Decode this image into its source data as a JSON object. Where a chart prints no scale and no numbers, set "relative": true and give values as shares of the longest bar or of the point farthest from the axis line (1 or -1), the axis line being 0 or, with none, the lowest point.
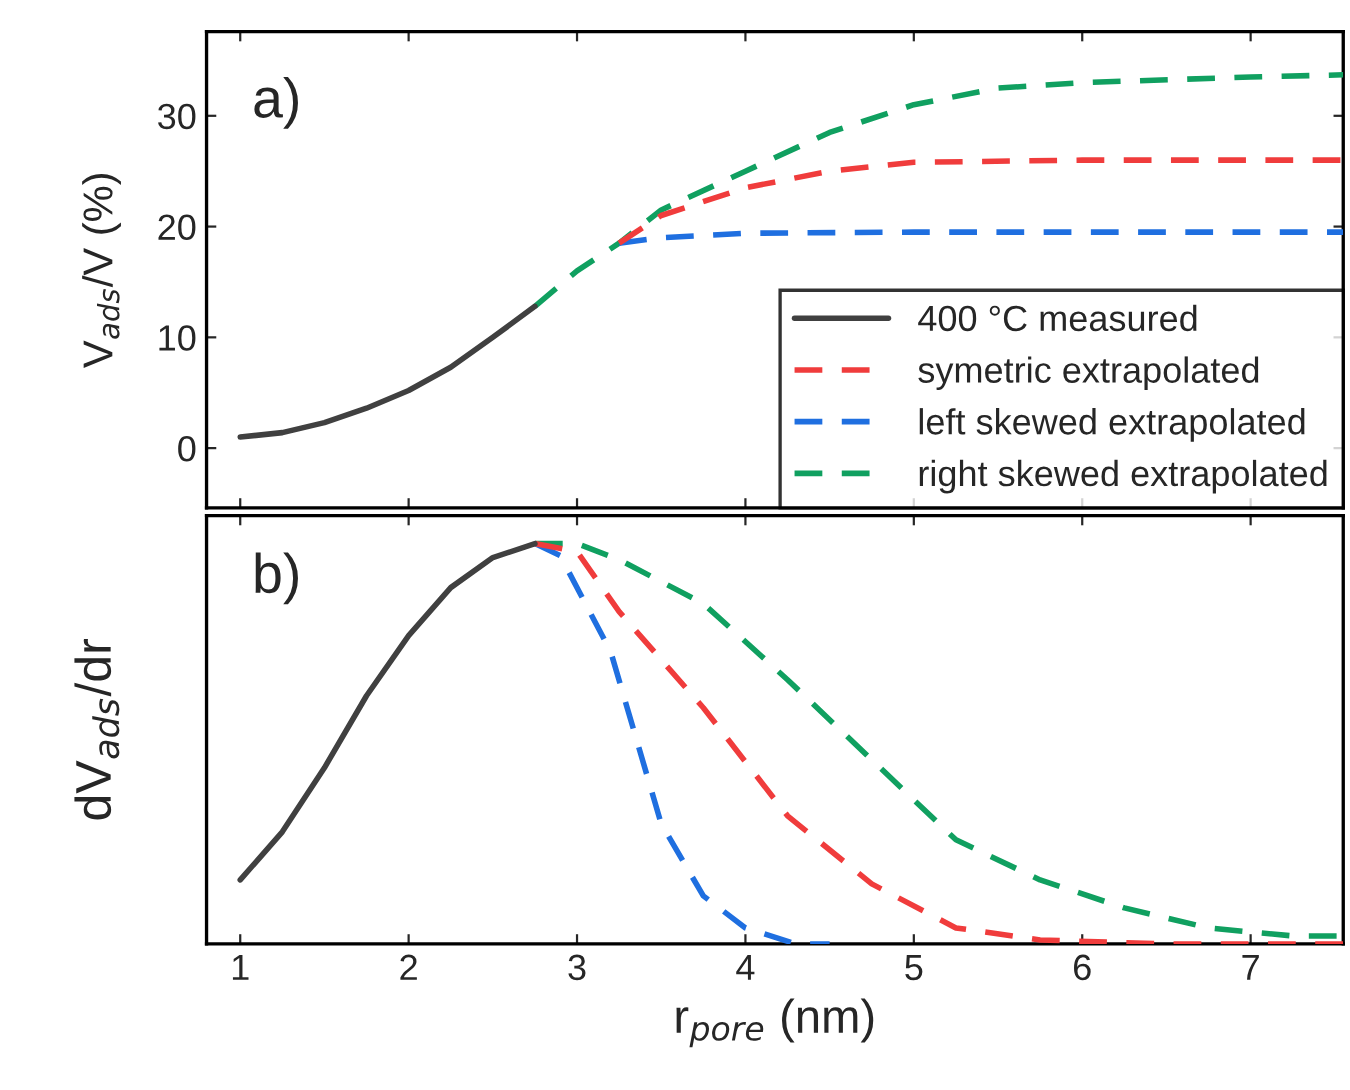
{
  "chart_data": [
    {
      "type": "line",
      "ylabel": "V$_{ads}$/V (%)",
      "annotations": [
        "a)"
      ],
      "xlim": [
        0.8,
        7.55
      ],
      "ylim": [
        -5.4,
        37.6
      ],
      "yticks": [
        0,
        10,
        20,
        30
      ],
      "xticks": [
        1,
        2,
        3,
        4,
        5,
        6,
        7
      ],
      "tick_labels": "y",
      "grid": false,
      "legend": "bottom right",
      "series": [
        {
          "name": "400 °C measured",
          "color": "#404040",
          "line_style": "solid",
          "x": [
            1.0,
            1.25,
            1.5,
            1.75,
            2.0,
            2.25,
            2.5,
            2.75
          ],
          "values": [
            1.0,
            1.4,
            2.3,
            3.6,
            5.2,
            7.3,
            10.0,
            12.8
          ]
        },
        {
          "name": "symetric extrapolated",
          "color": "#f03c3c",
          "line_style": "dashed",
          "x": [
            3.25,
            3.5,
            4.0,
            4.5,
            5.0,
            6.0,
            7.0,
            7.55
          ],
          "values": [
            18.5,
            21.0,
            23.5,
            25.0,
            25.8,
            26.0,
            26.0,
            26.0
          ]
        },
        {
          "name": "left skewed extrapolated",
          "color": "#1f6fe0",
          "line_style": "dashed",
          "x": [
            3.25,
            3.5,
            4.0,
            5.0,
            6.0,
            7.55
          ],
          "values": [
            18.5,
            19.0,
            19.4,
            19.5,
            19.5,
            19.5
          ]
        },
        {
          "name": "right skewed extrapolated",
          "color": "#10a060",
          "line_style": "dashed",
          "x": [
            2.75,
            3.0,
            3.25,
            3.5,
            4.0,
            4.5,
            5.0,
            5.5,
            6.0,
            7.0,
            7.55
          ],
          "values": [
            12.8,
            16.0,
            18.5,
            21.5,
            25.0,
            28.5,
            31.0,
            32.5,
            33.0,
            33.5,
            33.7
          ]
        }
      ]
    },
    {
      "type": "line",
      "ylabel": "dV$_{ads}$/dr",
      "xlabel": "r$_{pore}$ (nm)",
      "annotations": [
        "b)"
      ],
      "xlim": [
        0.8,
        7.55
      ],
      "xticks": [
        1,
        2,
        3,
        4,
        5,
        6,
        7
      ],
      "relative": true,
      "tick_labels": "x",
      "grid": false,
      "series": [
        {
          "color": "#404040",
          "line_style": "solid",
          "x": [
            1.0,
            1.25,
            1.5,
            1.75,
            2.0,
            2.25,
            2.5,
            2.75
          ],
          "values": [
            0.16,
            0.28,
            0.44,
            0.62,
            0.77,
            0.89,
            0.965,
            1.0
          ]
        },
        {
          "color": "#f03c3c",
          "line_style": "dashed",
          "x": [
            2.75,
            3.0,
            3.25,
            3.75,
            4.25,
            4.75,
            5.25,
            5.75,
            6.5,
            7.55
          ],
          "values": [
            1.0,
            0.98,
            0.83,
            0.59,
            0.32,
            0.15,
            0.04,
            0.01,
            0.0,
            0.0
          ]
        },
        {
          "color": "#1f6fe0",
          "line_style": "dashed",
          "x": [
            2.75,
            2.9,
            3.2,
            3.5,
            3.75,
            4.0,
            4.3,
            4.5
          ],
          "values": [
            1.0,
            0.97,
            0.73,
            0.3,
            0.12,
            0.04,
            0.0,
            0.0
          ]
        },
        {
          "color": "#10a060",
          "line_style": "dashed",
          "x": [
            2.75,
            3.0,
            3.25,
            3.75,
            4.25,
            4.75,
            5.25,
            5.75,
            6.25,
            6.75,
            7.25,
            7.55
          ],
          "values": [
            1.0,
            1.0,
            0.96,
            0.85,
            0.66,
            0.46,
            0.26,
            0.16,
            0.09,
            0.04,
            0.02,
            0.02
          ]
        }
      ]
    }
  ]
}
